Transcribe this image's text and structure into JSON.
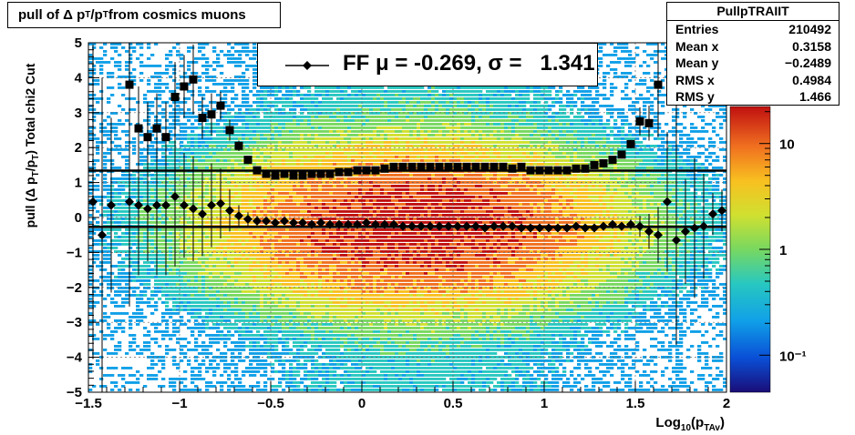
{
  "title": {
    "main": "pull of Δ p",
    "sub1": "T",
    "mid": "/p",
    "sub2": "T",
    "tail": " from cosmics muons"
  },
  "legend": {
    "label": "FF μ = -0.269, σ =   1.341"
  },
  "stats": {
    "title": "PullpTRAIIT",
    "rows": [
      {
        "label": "Entries",
        "value": "210492"
      },
      {
        "label": "Mean x",
        "value": "0.3158"
      },
      {
        "label": "Mean y",
        "value": "−0.2489"
      },
      {
        "label": "RMS x",
        "value": "0.4984"
      },
      {
        "label": "RMS y",
        "value": "1.466"
      }
    ]
  },
  "colors": {
    "frame": "#000000",
    "grid": "#666666",
    "markers": "#000000"
  },
  "chart_data": {
    "type": "heatmap",
    "xlabel_main": "Log",
    "xlabel_sub1": "10",
    "xlabel_mid": "(p",
    "xlabel_sub2": "TAv",
    "xlabel_tail": ")",
    "ylabel": "pull (Δ p_T/p_T)  Total chi2 Cut",
    "xlim": [
      -1.5,
      2
    ],
    "ylim": [
      -5,
      5
    ],
    "x_ticks": [
      "−1.5",
      "−1",
      "−0.5",
      "0",
      "0.5",
      "1",
      "1.5",
      "2"
    ],
    "x_tick_values": [
      -1.5,
      -1,
      -0.5,
      0,
      0.5,
      1,
      1.5,
      2
    ],
    "y_ticks": [
      "5",
      "4",
      "3",
      "2",
      "1",
      "0",
      "−1",
      "−2",
      "−3",
      "−4",
      "−5"
    ],
    "y_tick_values": [
      5,
      4,
      3,
      2,
      1,
      0,
      -1,
      -2,
      -3,
      -4,
      -5
    ],
    "z_scale": "log",
    "z_ticks": [
      "10",
      "1",
      "10⁻¹"
    ],
    "z_tick_values": [
      10,
      1,
      0.1
    ],
    "grid": true,
    "density_peak": {
      "x": 0.3,
      "y": -0.25
    },
    "sigma_line": 1.341,
    "mean_line": -0.269,
    "sigma_series": {
      "name": "sigma",
      "marker": "square",
      "points": [
        [
          -1.275,
          3.8,
          3.0
        ],
        [
          -1.225,
          2.55,
          1.2
        ],
        [
          -1.175,
          2.3,
          1.0
        ],
        [
          -1.125,
          2.55,
          1.0
        ],
        [
          -1.075,
          2.3,
          1.0
        ],
        [
          -1.025,
          3.45,
          1.0
        ],
        [
          -0.975,
          3.75,
          0.9
        ],
        [
          -0.925,
          3.95,
          1.0
        ],
        [
          -0.875,
          2.85,
          0.6
        ],
        [
          -0.825,
          2.95,
          0.6
        ],
        [
          -0.775,
          3.2,
          0.4
        ],
        [
          -0.725,
          2.5,
          0.3
        ],
        [
          -0.675,
          2.05,
          0.15
        ],
        [
          -0.625,
          1.65,
          0.1
        ],
        [
          -0.575,
          1.35,
          0.08
        ],
        [
          -0.525,
          1.25,
          0.06
        ],
        [
          -0.475,
          1.2,
          0.05
        ],
        [
          -0.425,
          1.25,
          0.05
        ],
        [
          -0.375,
          1.2,
          0.04
        ],
        [
          -0.325,
          1.2,
          0.04
        ],
        [
          -0.275,
          1.25,
          0.03
        ],
        [
          -0.225,
          1.25,
          0.03
        ],
        [
          -0.175,
          1.25,
          0.03
        ],
        [
          -0.125,
          1.3,
          0.02
        ],
        [
          -0.075,
          1.3,
          0.02
        ],
        [
          -0.025,
          1.35,
          0.02
        ],
        [
          0.025,
          1.35,
          0.02
        ],
        [
          0.075,
          1.35,
          0.02
        ],
        [
          0.125,
          1.4,
          0.02
        ],
        [
          0.175,
          1.45,
          0.02
        ],
        [
          0.225,
          1.45,
          0.02
        ],
        [
          0.275,
          1.45,
          0.02
        ],
        [
          0.325,
          1.45,
          0.02
        ],
        [
          0.375,
          1.45,
          0.02
        ],
        [
          0.425,
          1.45,
          0.02
        ],
        [
          0.475,
          1.45,
          0.02
        ],
        [
          0.525,
          1.45,
          0.02
        ],
        [
          0.575,
          1.45,
          0.02
        ],
        [
          0.625,
          1.45,
          0.02
        ],
        [
          0.675,
          1.45,
          0.02
        ],
        [
          0.725,
          1.45,
          0.02
        ],
        [
          0.775,
          1.45,
          0.02
        ],
        [
          0.825,
          1.4,
          0.02
        ],
        [
          0.875,
          1.45,
          0.02
        ],
        [
          0.925,
          1.35,
          0.02
        ],
        [
          0.975,
          1.35,
          0.03
        ],
        [
          1.025,
          1.35,
          0.03
        ],
        [
          1.075,
          1.35,
          0.03
        ],
        [
          1.125,
          1.35,
          0.03
        ],
        [
          1.175,
          1.4,
          0.04
        ],
        [
          1.225,
          1.4,
          0.04
        ],
        [
          1.275,
          1.5,
          0.05
        ],
        [
          1.325,
          1.55,
          0.06
        ],
        [
          1.375,
          1.65,
          0.07
        ],
        [
          1.425,
          1.8,
          0.08
        ],
        [
          1.475,
          2.1,
          0.12
        ],
        [
          1.525,
          2.75,
          0.4
        ],
        [
          1.575,
          2.7,
          0.5
        ],
        [
          1.625,
          3.8,
          1.5
        ],
        [
          1.725,
          4.6,
          2.5
        ]
      ]
    },
    "mean_series": {
      "name": "mean",
      "marker": "diamond",
      "points": [
        [
          -1.475,
          0.45,
          4.5
        ],
        [
          -1.425,
          -0.5,
          4.5
        ],
        [
          -1.375,
          0.35,
          2.5
        ],
        [
          -1.275,
          0.45,
          3.0
        ],
        [
          -1.225,
          0.35,
          2.0
        ],
        [
          -1.175,
          0.25,
          1.5
        ],
        [
          -1.125,
          0.35,
          2.0
        ],
        [
          -1.075,
          0.35,
          2.0
        ],
        [
          -1.025,
          0.6,
          2.0
        ],
        [
          -0.975,
          0.35,
          1.5
        ],
        [
          -0.925,
          0.25,
          1.5
        ],
        [
          -0.875,
          0.1,
          1.2
        ],
        [
          -0.825,
          0.35,
          1.2
        ],
        [
          -0.775,
          0.4,
          1.0
        ],
        [
          -0.725,
          0.2,
          0.6
        ],
        [
          -0.675,
          0.05,
          0.3
        ],
        [
          -0.625,
          -0.05,
          0.2
        ],
        [
          -0.575,
          -0.1,
          0.15
        ],
        [
          -0.525,
          -0.1,
          0.1
        ],
        [
          -0.475,
          -0.15,
          0.08
        ],
        [
          -0.425,
          -0.1,
          0.07
        ],
        [
          -0.375,
          -0.15,
          0.06
        ],
        [
          -0.325,
          -0.15,
          0.05
        ],
        [
          -0.275,
          -0.2,
          0.05
        ],
        [
          -0.225,
          -0.15,
          0.05
        ],
        [
          -0.175,
          -0.2,
          0.04
        ],
        [
          -0.125,
          -0.2,
          0.04
        ],
        [
          -0.075,
          -0.2,
          0.04
        ],
        [
          -0.025,
          -0.2,
          0.04
        ],
        [
          0.025,
          -0.15,
          0.03
        ],
        [
          0.075,
          -0.2,
          0.03
        ],
        [
          0.125,
          -0.2,
          0.03
        ],
        [
          0.175,
          -0.2,
          0.03
        ],
        [
          0.225,
          -0.25,
          0.03
        ],
        [
          0.275,
          -0.25,
          0.03
        ],
        [
          0.325,
          -0.25,
          0.03
        ],
        [
          0.375,
          -0.25,
          0.03
        ],
        [
          0.425,
          -0.25,
          0.03
        ],
        [
          0.475,
          -0.25,
          0.03
        ],
        [
          0.525,
          -0.25,
          0.03
        ],
        [
          0.575,
          -0.25,
          0.03
        ],
        [
          0.625,
          -0.25,
          0.03
        ],
        [
          0.675,
          -0.3,
          0.03
        ],
        [
          0.725,
          -0.25,
          0.03
        ],
        [
          0.775,
          -0.25,
          0.03
        ],
        [
          0.825,
          -0.25,
          0.03
        ],
        [
          0.875,
          -0.3,
          0.03
        ],
        [
          0.925,
          -0.3,
          0.03
        ],
        [
          0.975,
          -0.3,
          0.04
        ],
        [
          1.025,
          -0.3,
          0.04
        ],
        [
          1.075,
          -0.3,
          0.04
        ],
        [
          1.125,
          -0.3,
          0.05
        ],
        [
          1.175,
          -0.25,
          0.05
        ],
        [
          1.225,
          -0.3,
          0.06
        ],
        [
          1.275,
          -0.3,
          0.07
        ],
        [
          1.325,
          -0.25,
          0.08
        ],
        [
          1.375,
          -0.2,
          0.1
        ],
        [
          1.425,
          -0.25,
          0.12
        ],
        [
          1.475,
          -0.2,
          0.15
        ],
        [
          1.525,
          -0.25,
          0.3
        ],
        [
          1.575,
          -0.4,
          0.5
        ],
        [
          1.625,
          -0.5,
          0.8
        ],
        [
          1.675,
          0.45,
          2.0
        ],
        [
          1.725,
          -0.65,
          3.0
        ],
        [
          1.775,
          -0.4,
          1.5
        ],
        [
          1.825,
          -0.3,
          2.0
        ],
        [
          1.875,
          -0.25,
          1.5
        ],
        [
          1.925,
          0.1,
          0.6
        ],
        [
          1.975,
          0.2,
          0.6
        ]
      ]
    }
  }
}
